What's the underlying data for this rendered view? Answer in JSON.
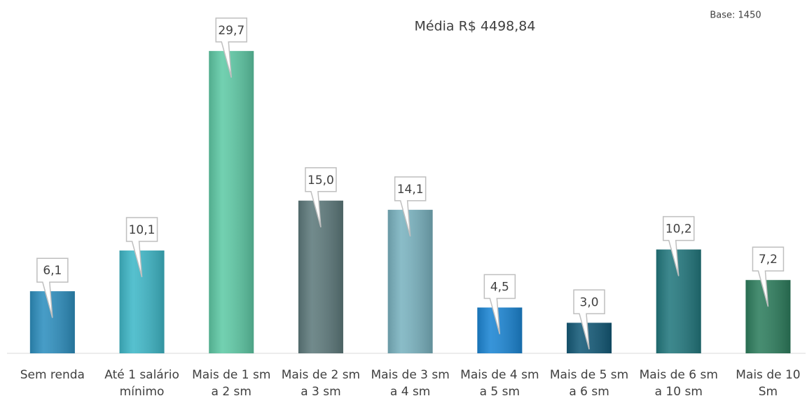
{
  "chart_data": {
    "type": "bar",
    "title": "Média R$ 4498,84",
    "note": "Base: 1450",
    "categories": [
      "Sem renda",
      "Até 1 salário mínimo",
      "Mais de 1 sm a 2 sm",
      "Mais de 2 sm a 3 sm",
      "Mais de 3 sm a 4 sm",
      "Mais de 4 sm a 5 sm",
      "Mais de 5 sm a 6 sm",
      "Mais de 6 sm a 10 sm",
      "Mais de 10 Sm"
    ],
    "values": [
      6.1,
      10.1,
      29.7,
      15.0,
      14.1,
      4.5,
      3.0,
      10.2,
      7.2
    ],
    "value_labels": [
      "6,1",
      "10,1",
      "29,7",
      "15,0",
      "14,1",
      "4,5",
      "3,0",
      "10,2",
      "7,2"
    ],
    "colors": [
      "#2e8fbf",
      "#3fb8c8",
      "#5fcaa6",
      "#5e7a7c",
      "#7ab3c0",
      "#1c86d4",
      "#145a78",
      "#23787e",
      "#2e7e5e"
    ]
  }
}
